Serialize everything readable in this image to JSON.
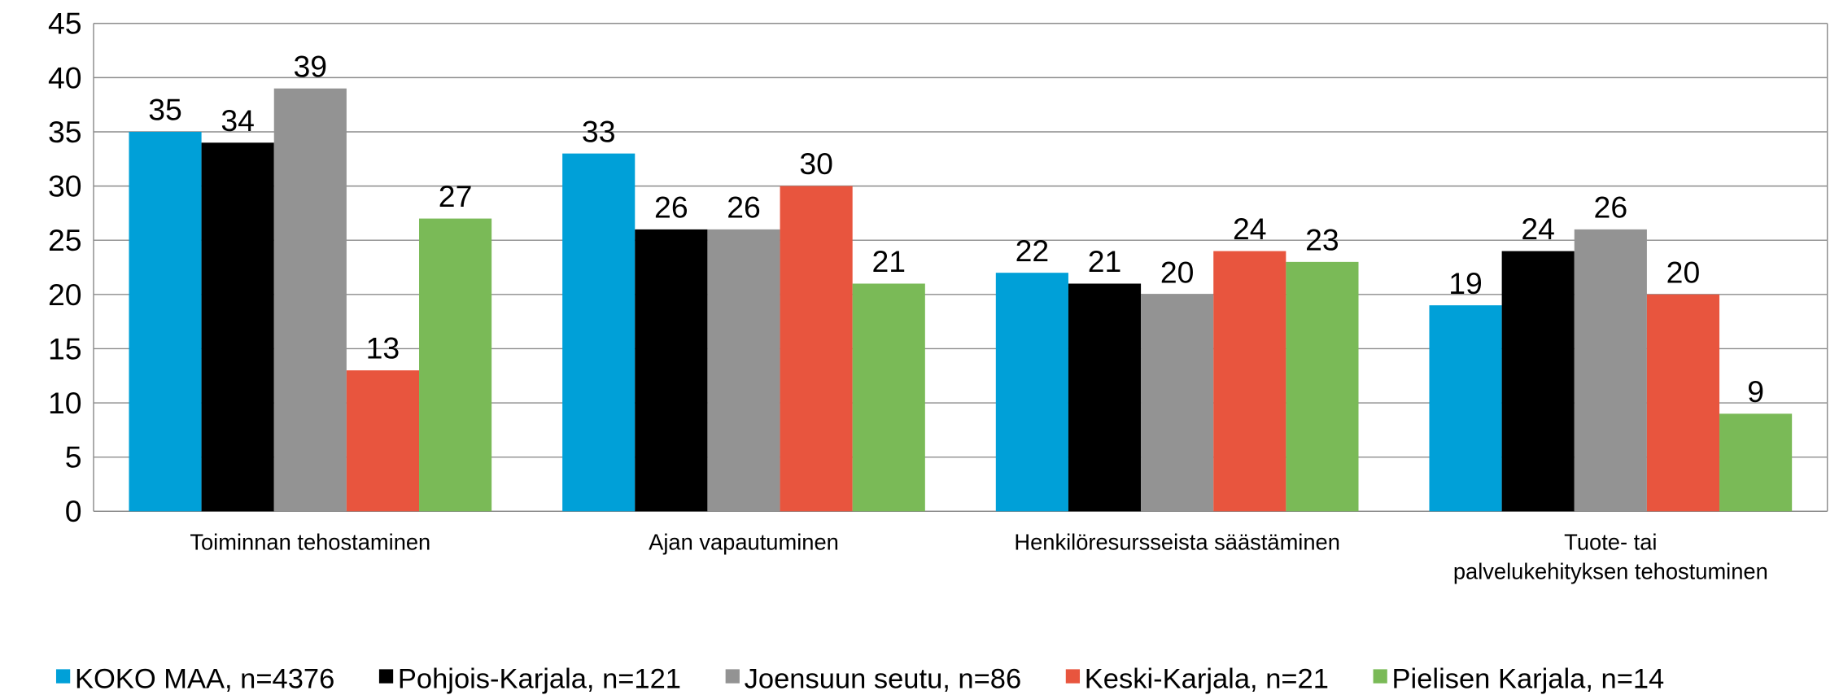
{
  "chart_data": {
    "type": "bar",
    "categories": [
      "Toiminnan tehostaminen",
      "Ajan vapautuminen",
      "Henkilöresursseista säästäminen",
      "Tuote- tai palvelukehityksen tehostuminen"
    ],
    "series": [
      {
        "name": "KOKO MAA, n=4376",
        "color": "#00a0d8",
        "values": [
          35,
          33,
          22,
          19
        ]
      },
      {
        "name": "Pohjois-Karjala, n=121",
        "color": "#000000",
        "values": [
          34,
          26,
          21,
          24
        ]
      },
      {
        "name": "Joensuun seutu, n=86",
        "color": "#939393",
        "values": [
          39,
          26,
          20,
          26
        ]
      },
      {
        "name": "Keski-Karjala, n=21",
        "color": "#e8553e",
        "values": [
          13,
          30,
          24,
          20
        ]
      },
      {
        "name": "Pielisen Karjala, n=14",
        "color": "#7aba57",
        "values": [
          27,
          21,
          23,
          9
        ]
      }
    ],
    "ylim": [
      0,
      45
    ],
    "yticks": [
      0,
      5,
      10,
      15,
      20,
      25,
      30,
      35,
      40,
      45
    ],
    "grid": true,
    "legend": "bottom"
  }
}
